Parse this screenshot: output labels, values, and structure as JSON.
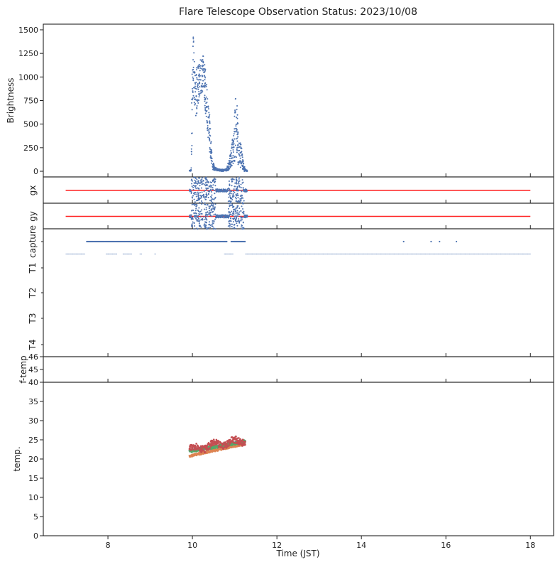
{
  "chart_data": {
    "type": "scatter",
    "title": "Flare Telescope Observation Status: 2023/10/08",
    "xlabel": "Time (JST)",
    "xlim": [
      6.47,
      18.55
    ],
    "xticks": [
      8,
      10,
      12,
      14,
      16,
      18
    ],
    "xtick_labels": [
      "8",
      "10",
      "12",
      "14",
      "16",
      "18"
    ],
    "panels": {
      "brightness": {
        "ylabel": "Brightness",
        "ylim": [
          -60,
          1560
        ],
        "yticks": [
          0,
          250,
          500,
          750,
          1000,
          1250,
          1500
        ],
        "ytick_labels": [
          "0",
          "250",
          "500",
          "750",
          "1000",
          "1250",
          "1500"
        ],
        "color": "#4c72b0",
        "envelope_time_center_spread": [
          [
            9.93,
            5,
            5
          ],
          [
            9.97,
            10,
            8
          ],
          [
            9.99,
            700,
            450
          ],
          [
            10.02,
            1150,
            330
          ],
          [
            10.06,
            800,
            250
          ],
          [
            10.1,
            850,
            250
          ],
          [
            10.15,
            950,
            200
          ],
          [
            10.2,
            1000,
            200
          ],
          [
            10.26,
            1050,
            180
          ],
          [
            10.3,
            900,
            250
          ],
          [
            10.36,
            600,
            200
          ],
          [
            10.42,
            350,
            200
          ],
          [
            10.47,
            80,
            60
          ],
          [
            10.52,
            30,
            20
          ],
          [
            10.6,
            15,
            10
          ],
          [
            10.7,
            10,
            10
          ],
          [
            10.8,
            15,
            12
          ],
          [
            10.86,
            60,
            50
          ],
          [
            10.92,
            150,
            100
          ],
          [
            10.98,
            250,
            200
          ],
          [
            11.02,
            500,
            350
          ],
          [
            11.06,
            400,
            300
          ],
          [
            11.1,
            200,
            150
          ],
          [
            11.16,
            150,
            120
          ],
          [
            11.2,
            60,
            60
          ],
          [
            11.25,
            10,
            10
          ],
          [
            11.3,
            5,
            5
          ]
        ]
      },
      "gx": {
        "ylabel": "gx",
        "reference": 0,
        "scatter_range": [
          9.93,
          11.3
        ],
        "ref_range": [
          7,
          18
        ],
        "ref_color": "#ff2020",
        "color": "#4c72b0"
      },
      "gy": {
        "ylabel": "gy",
        "reference": 0,
        "scatter_range": [
          9.93,
          11.3
        ],
        "ref_range": [
          7,
          18
        ],
        "ref_color": "#ff2020",
        "color": "#4c72b0"
      },
      "status": {
        "rows": [
          "capture",
          "T1",
          "T2",
          "T3",
          "T4"
        ],
        "capture_segments": [
          [
            7.5,
            10.83
          ],
          [
            10.92,
            11.25
          ]
        ],
        "capture_points": [
          15.0,
          15.65,
          15.85,
          16.25
        ],
        "t1_segments": [
          [
            7.0,
            7.45
          ],
          [
            7.95,
            8.0
          ],
          [
            8.0,
            8.2
          ],
          [
            8.35,
            8.55
          ],
          [
            8.75,
            8.8
          ],
          [
            9.1,
            9.12
          ],
          [
            10.75,
            10.95
          ],
          [
            11.25,
            18.0
          ]
        ],
        "color": "#4c72b0"
      },
      "ftemp": {
        "ylabel": "f-temp",
        "ylim": [
          44,
          46
        ],
        "yticks": [
          45,
          46
        ],
        "ytick_labels": [
          "45",
          "46"
        ]
      },
      "temp": {
        "ylabel": "temp.",
        "ylim": [
          0,
          40
        ],
        "yticks": [
          0,
          5,
          10,
          15,
          20,
          25,
          30,
          35,
          40
        ],
        "ytick_labels": [
          "0",
          "5",
          "10",
          "15",
          "20",
          "25",
          "30",
          "35",
          "40"
        ],
        "series": [
          {
            "name": "blue",
            "color": "#4c72b0",
            "t": [
              9.93,
              11.25
            ],
            "v": [
              22.2,
              24.5
            ],
            "noise": 0.3
          },
          {
            "name": "orange",
            "color": "#dd8452",
            "t": [
              9.93,
              11.25
            ],
            "v": [
              20.8,
              24.0
            ],
            "noise": 0.3
          },
          {
            "name": "green",
            "color": "#55a868",
            "t": [
              9.93,
              11.25
            ],
            "v": [
              22.0,
              24.6
            ],
            "noise": 0.4
          },
          {
            "name": "red",
            "color": "#c44e52",
            "t": [
              9.93,
              11.25
            ],
            "v": [
              22.5,
              25.0
            ],
            "noise": 0.9
          }
        ]
      }
    }
  }
}
